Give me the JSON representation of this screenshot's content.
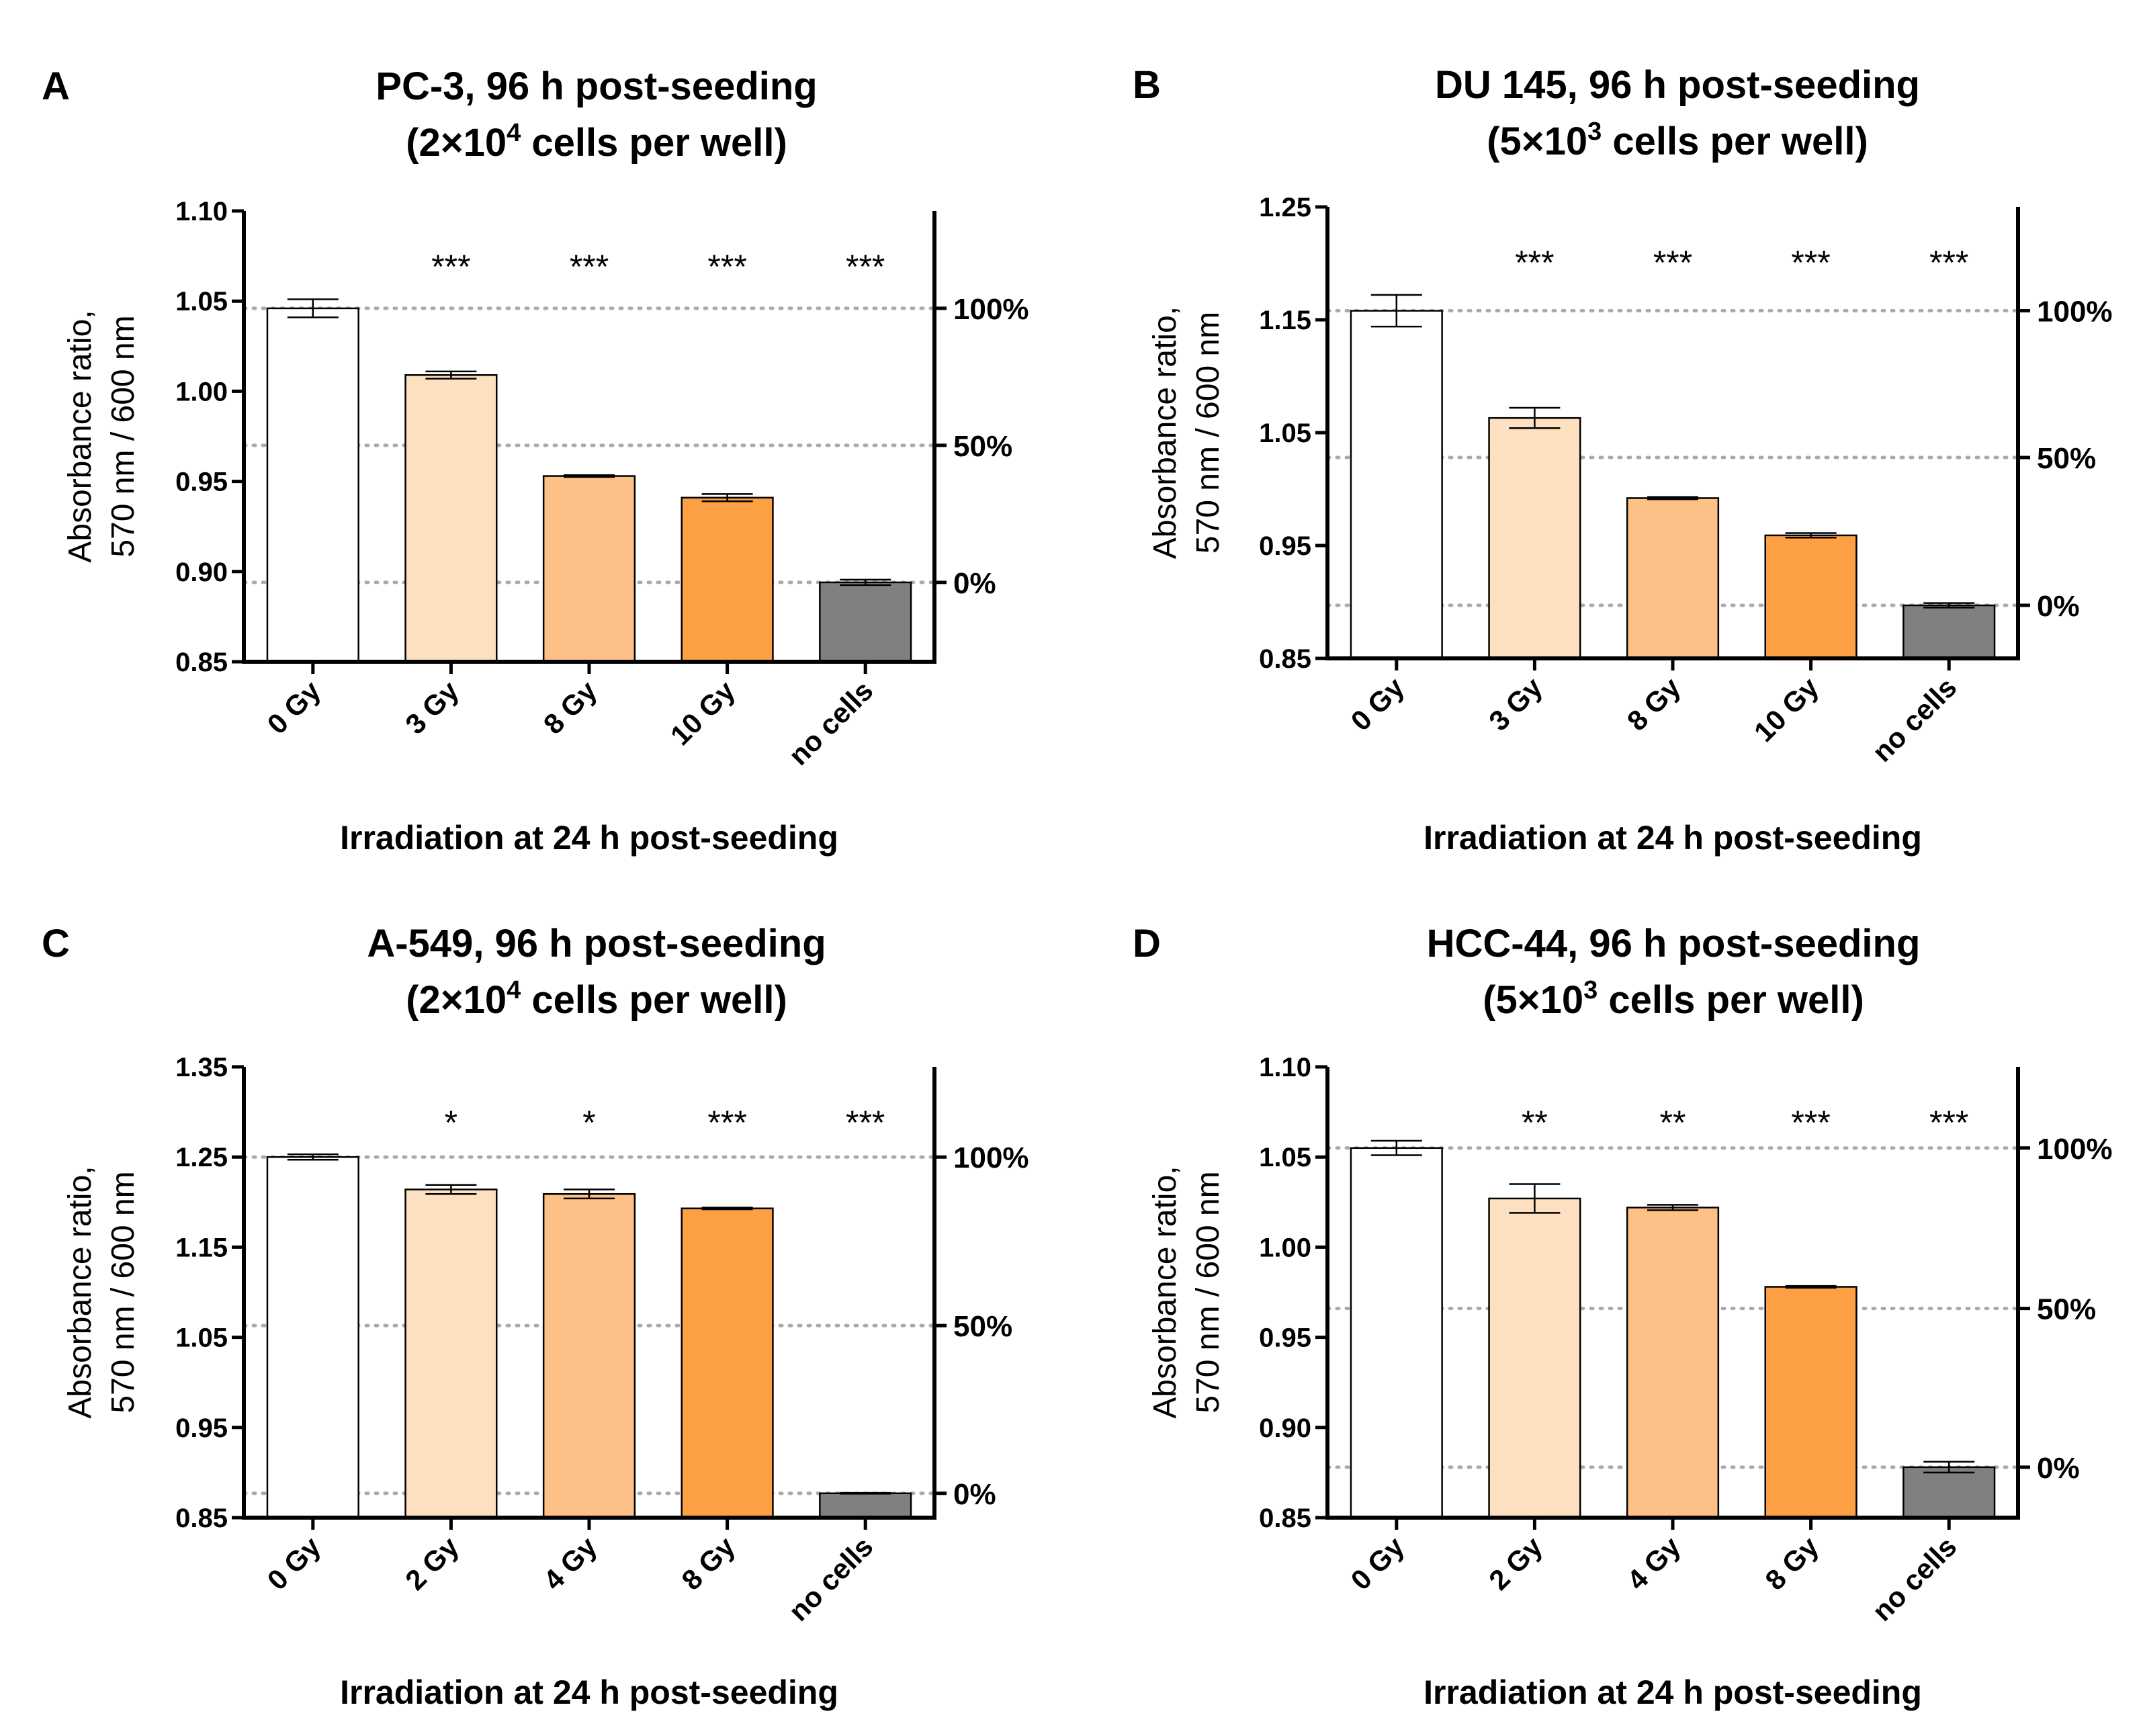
{
  "chart_data": [
    {
      "type": "bar",
      "panel": "A",
      "title_line1": "PC-3, 96 h post-seeding",
      "title_line2": {
        "pre": "(2×10",
        "sup": "4",
        "post": " cells per well)"
      },
      "ylabel_line1": "Absorbance ratio,",
      "ylabel_line2": "570 nm / 600 nm",
      "xlabel": "Irradiation at 24 h post-seeding",
      "ylim": [
        0.85,
        1.1
      ],
      "yticks": [
        0.85,
        0.9,
        0.95,
        1.0,
        1.05,
        1.1
      ],
      "ytick_labels": [
        "0.85",
        "0.90",
        "0.95",
        "1.00",
        "1.05",
        "1.10"
      ],
      "categories": [
        "0 Gy",
        "3 Gy",
        "8 Gy",
        "10 Gy",
        "no cells"
      ],
      "values": [
        1.046,
        1.009,
        0.953,
        0.941,
        0.894
      ],
      "errors": [
        0.005,
        0.002,
        0.0005,
        0.002,
        0.0015
      ],
      "significance": [
        "",
        "***",
        "***",
        "***",
        "***"
      ],
      "bar_colors": [
        "#ffffff",
        "#fde0c0",
        "#fdc086",
        "#fca043",
        "#808080"
      ],
      "right_axis": [
        {
          "label": "100%",
          "y": 1.046
        },
        {
          "label": "50%",
          "y": 0.97
        },
        {
          "label": "0%",
          "y": 0.894
        }
      ]
    },
    {
      "type": "bar",
      "panel": "B",
      "title_line1": "DU 145, 96 h post-seeding",
      "title_line2": {
        "pre": "(5×10",
        "sup": "3",
        "post": " cells per well)"
      },
      "ylabel_line1": "Absorbance ratio,",
      "ylabel_line2": "570 nm / 600 nm",
      "xlabel": "Irradiation at 24 h post-seeding",
      "ylim": [
        0.85,
        1.25
      ],
      "yticks": [
        0.85,
        0.95,
        1.05,
        1.15,
        1.25
      ],
      "ytick_labels": [
        "0.85",
        "0.95",
        "1.05",
        "1.15",
        "1.25"
      ],
      "categories": [
        "0 Gy",
        "3 Gy",
        "8 Gy",
        "10 Gy",
        "no cells"
      ],
      "values": [
        1.158,
        1.063,
        0.992,
        0.959,
        0.897
      ],
      "errors": [
        0.014,
        0.009,
        0.001,
        0.002,
        0.002
      ],
      "significance": [
        "",
        "***",
        "***",
        "***",
        "***"
      ],
      "bar_colors": [
        "#ffffff",
        "#fde0c0",
        "#fdc086",
        "#fca043",
        "#808080"
      ],
      "right_axis": [
        {
          "label": "100%",
          "y": 1.158
        },
        {
          "label": "50%",
          "y": 1.028
        },
        {
          "label": "0%",
          "y": 0.897
        }
      ]
    },
    {
      "type": "bar",
      "panel": "C",
      "title_line1": "A-549, 96 h post-seeding",
      "title_line2": {
        "pre": "(2×10",
        "sup": "4",
        "post": " cells per well)"
      },
      "ylabel_line1": "Absorbance ratio,",
      "ylabel_line2": "570 nm / 600 nm",
      "xlabel": "Irradiation at 24 h post-seeding",
      "ylim": [
        0.85,
        1.35
      ],
      "yticks": [
        0.85,
        0.95,
        1.05,
        1.15,
        1.25,
        1.35
      ],
      "ytick_labels": [
        "0.85",
        "0.95",
        "1.05",
        "1.15",
        "1.25",
        "1.35"
      ],
      "categories": [
        "0 Gy",
        "2 Gy",
        "4 Gy",
        "8 Gy",
        "no cells"
      ],
      "values": [
        1.25,
        1.214,
        1.209,
        1.193,
        0.877
      ],
      "errors": [
        0.003,
        0.005,
        0.005,
        0.001,
        0.0005
      ],
      "significance": [
        "",
        "*",
        "*",
        "***",
        "***"
      ],
      "bar_colors": [
        "#ffffff",
        "#fde0c0",
        "#fdc086",
        "#fca043",
        "#808080"
      ],
      "right_axis": [
        {
          "label": "100%",
          "y": 1.25
        },
        {
          "label": "50%",
          "y": 1.063
        },
        {
          "label": "0%",
          "y": 0.877
        }
      ]
    },
    {
      "type": "bar",
      "panel": "D",
      "title_line1": "HCC-44, 96 h post-seeding",
      "title_line2": {
        "pre": "(5×10",
        "sup": "3",
        "post": " cells per well)"
      },
      "ylabel_line1": "Absorbance ratio,",
      "ylabel_line2": "570 nm / 600 nm",
      "xlabel": "Irradiation at 24 h post-seeding",
      "ylim": [
        0.85,
        1.1
      ],
      "yticks": [
        0.85,
        0.9,
        0.95,
        1.0,
        1.05,
        1.1
      ],
      "ytick_labels": [
        "0.85",
        "0.90",
        "0.95",
        "1.00",
        "1.05",
        "1.10"
      ],
      "categories": [
        "0 Gy",
        "2 Gy",
        "4 Gy",
        "8 Gy",
        "no cells"
      ],
      "values": [
        1.055,
        1.027,
        1.022,
        0.978,
        0.878
      ],
      "errors": [
        0.004,
        0.008,
        0.0015,
        0.0005,
        0.003
      ],
      "significance": [
        "",
        "**",
        "**",
        "***",
        "***"
      ],
      "bar_colors": [
        "#ffffff",
        "#fde0c0",
        "#fdc086",
        "#fca043",
        "#808080"
      ],
      "right_axis": [
        {
          "label": "100%",
          "y": 1.055
        },
        {
          "label": "50%",
          "y": 0.966
        },
        {
          "label": "0%",
          "y": 0.878
        }
      ]
    }
  ]
}
